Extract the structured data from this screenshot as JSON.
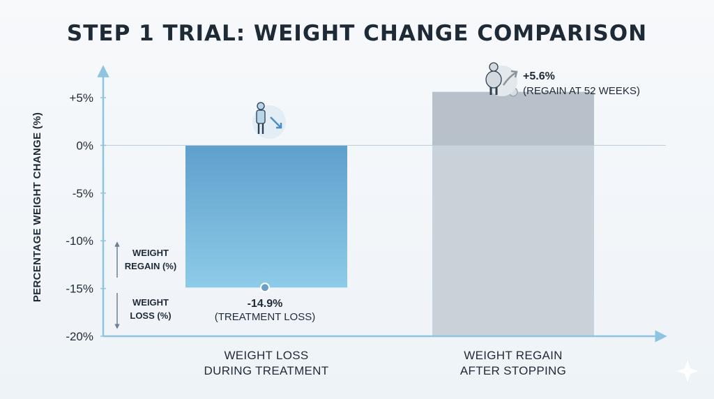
{
  "chart_data": {
    "type": "bar",
    "title": "STEP 1 TRIAL: WEIGHT CHANGE COMPARISON",
    "xlabel": "",
    "ylabel": "PERCENTAGE WEIGHT CHANGE (%)",
    "ylim": [
      -20,
      5
    ],
    "y_ticks": [
      {
        "value": 5,
        "label": "+5%"
      },
      {
        "value": 0,
        "label": "0%"
      },
      {
        "value": -5,
        "label": "-5%"
      },
      {
        "value": -10,
        "label": "-10%"
      },
      {
        "value": -15,
        "label": "-15%"
      },
      {
        "value": -20,
        "label": "-20%"
      }
    ],
    "categories": [
      [
        "WEIGHT LOSS",
        "DURING TREATMENT"
      ],
      [
        "WEIGHT REGAIN",
        "AFTER STOPPING"
      ]
    ],
    "values": [
      -14.9,
      5.6
    ],
    "data_labels": [
      {
        "value_text": "-14.9%",
        "note": "(TREATMENT LOSS)"
      },
      {
        "value_text": "+5.6%",
        "note": "(REGAIN AT 52 WEEKS)"
      }
    ],
    "legend": {
      "up_label": [
        "WEIGHT",
        "REGAIN (%)"
      ],
      "down_label": [
        "WEIGHT",
        "LOSS (%)"
      ]
    },
    "colors": {
      "loss_top": "#5f9fcc",
      "loss_bottom": "#8ecbe8",
      "regain": "#c9d1d9",
      "regain_upper": "#b8c1ca",
      "axis": "#8ec4e0",
      "text": "#1f2a37"
    },
    "grid": false,
    "icons": [
      "person-losing-weight-icon",
      "person-gaining-weight-icon"
    ]
  }
}
